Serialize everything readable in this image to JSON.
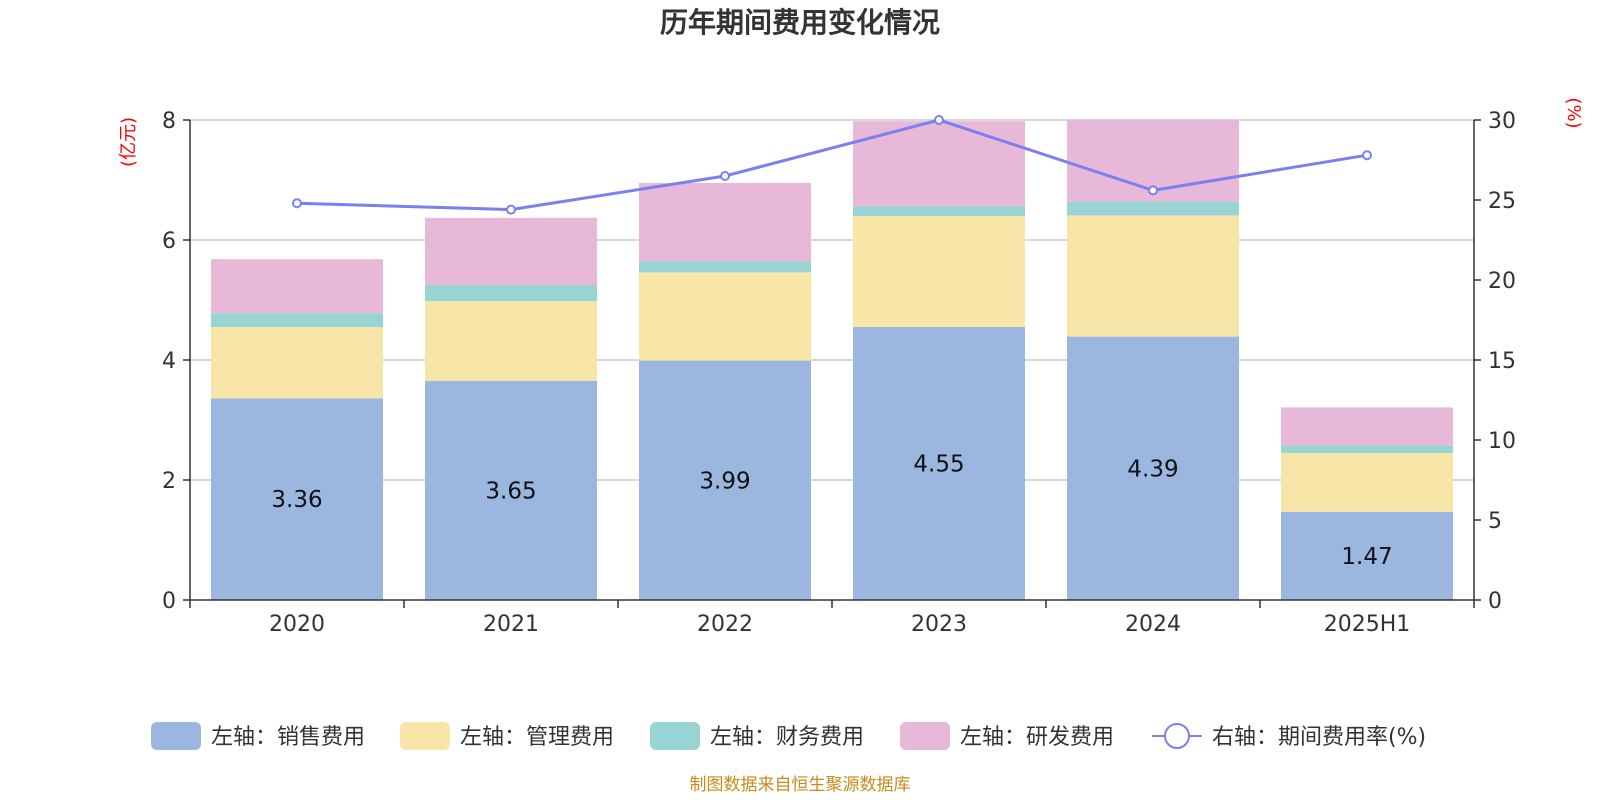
{
  "chart_data": {
    "type": "bar",
    "title": "历年期间费用变化情况",
    "categories": [
      "2020",
      "2021",
      "2022",
      "2023",
      "2024",
      "2025H1"
    ],
    "left_axis": {
      "unit": "(亿元)",
      "ylim": [
        0,
        8
      ],
      "ticks": [
        "0",
        "2",
        "4",
        "6",
        "8"
      ]
    },
    "right_axis": {
      "unit": "(%)",
      "ylim": [
        0,
        30
      ],
      "ticks": [
        "0",
        "5",
        "10",
        "15",
        "20",
        "25",
        "30"
      ]
    },
    "series": [
      {
        "name": "左轴：销售费用",
        "type": "bar",
        "stack": true,
        "axis": "left",
        "color": "#9bb7e0",
        "values": [
          3.36,
          3.65,
          3.99,
          4.55,
          4.39,
          1.47
        ],
        "labels": [
          "3.36",
          "3.65",
          "3.99",
          "4.55",
          "4.39",
          "1.47"
        ]
      },
      {
        "name": "左轴：管理费用",
        "type": "bar",
        "stack": true,
        "axis": "left",
        "color": "#f7e6a8",
        "values": [
          1.19,
          1.33,
          1.47,
          1.85,
          2.02,
          0.98
        ]
      },
      {
        "name": "左轴：财务费用",
        "type": "bar",
        "stack": true,
        "axis": "left",
        "color": "#99d4d4",
        "values": [
          0.23,
          0.27,
          0.18,
          0.16,
          0.23,
          0.13
        ]
      },
      {
        "name": "左轴：研发费用",
        "type": "bar",
        "stack": true,
        "axis": "left",
        "color": "#e8b8d8",
        "values": [
          0.9,
          1.12,
          1.31,
          1.42,
          1.37,
          0.63
        ]
      },
      {
        "name": "右轴：期间费用率(%)",
        "type": "line",
        "axis": "right",
        "color": "#7b7ff0",
        "values": [
          24.8,
          24.4,
          26.5,
          30.0,
          25.6,
          27.8
        ]
      }
    ],
    "grid": true,
    "legend_position": "bottom"
  },
  "footer": {
    "source": "制图数据来自恒生聚源数据库"
  }
}
